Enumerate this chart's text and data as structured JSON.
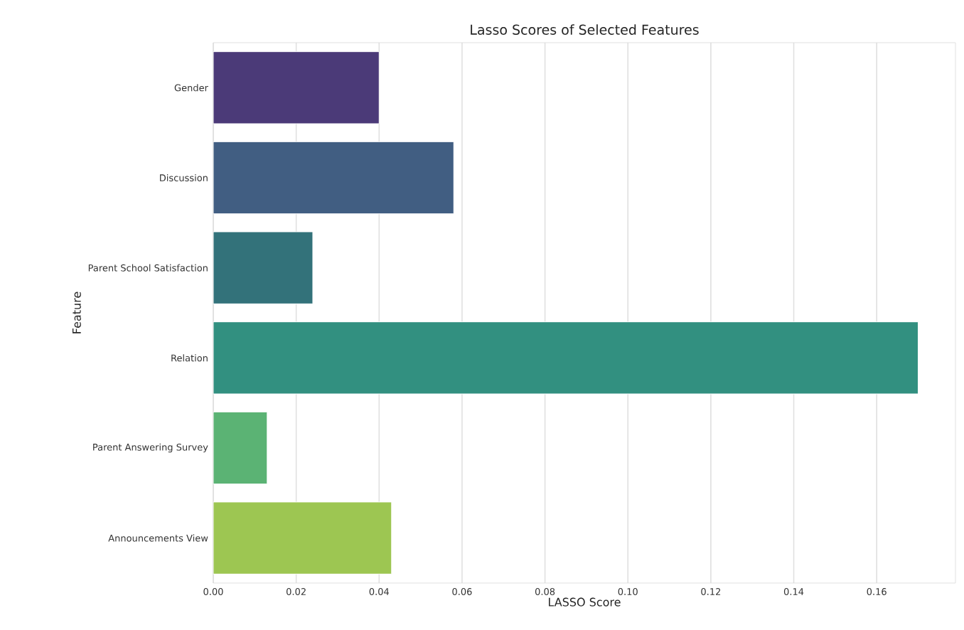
{
  "chart_data": {
    "type": "bar",
    "orientation": "horizontal",
    "title": "Lasso Scores of Selected Features",
    "xlabel": "LASSO Score",
    "ylabel": "Feature",
    "categories": [
      "Gender",
      "Discussion",
      "Parent School Satisfaction",
      "Relation",
      "Parent Answering Survey",
      "Announcements View"
    ],
    "values": [
      0.04,
      0.058,
      0.024,
      0.17,
      0.013,
      0.043
    ],
    "colors": [
      "#4b3a78",
      "#415e82",
      "#33727a",
      "#329080",
      "#5bb374",
      "#9dc652"
    ],
    "xlim": [
      0,
      0.179
    ],
    "xticks": [
      {
        "value": 0,
        "label": "0.00"
      },
      {
        "value": 0.02,
        "label": "0.02"
      },
      {
        "value": 0.04,
        "label": "0.04"
      },
      {
        "value": 0.06,
        "label": "0.06"
      },
      {
        "value": 0.08,
        "label": "0.08"
      },
      {
        "value": 0.1,
        "label": "0.10"
      },
      {
        "value": 0.12,
        "label": "0.12"
      },
      {
        "value": 0.14,
        "label": "0.14"
      },
      {
        "value": 0.16,
        "label": "0.16"
      }
    ],
    "grid": "x"
  }
}
